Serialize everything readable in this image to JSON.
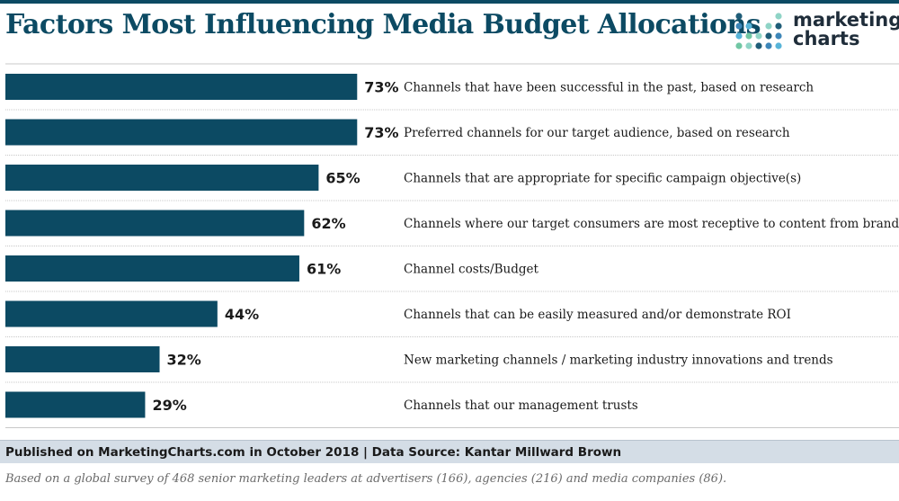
{
  "header": {
    "title": "Factors Most Influencing Media Budget Allocations",
    "logo": {
      "line1": "marketing",
      "line2": "charts"
    }
  },
  "colors": {
    "bar": "#0c4a63",
    "title": "#0c4a63",
    "rule": "#c8c8c8",
    "logo_dots": [
      "#1f5d78",
      "#3d86b8",
      "#58b4d8",
      "#71c7a4",
      "#8fd4c6"
    ]
  },
  "chart_data": {
    "type": "bar",
    "orientation": "horizontal",
    "categories": [
      "Channels that have been successful in the past, based on research",
      "Preferred channels for our target audience, based on research",
      "Channels that are appropriate for specific campaign objective(s)",
      "Channels where our target consumers are most receptive to content from brands",
      "Channel costs/Budget",
      "Channels that can be easily measured and/or demonstrate ROI",
      "New marketing channels / marketing industry innovations and trends",
      "Channels that our management trusts"
    ],
    "values": [
      73,
      73,
      65,
      62,
      61,
      44,
      32,
      29
    ],
    "value_labels": [
      "73%",
      "73%",
      "65%",
      "62%",
      "61%",
      "44%",
      "32%",
      "29%"
    ],
    "title": "Factors Most Influencing Media Budget Allocations",
    "xlim": [
      0,
      100
    ],
    "grid": false
  },
  "footer": {
    "source": "Published on MarketingCharts.com in October 2018 | Data Source: Kantar Millward Brown",
    "note": "Based on a global survey of 468 senior marketing leaders at advertisers (166), agencies (216) and media companies (86)."
  }
}
